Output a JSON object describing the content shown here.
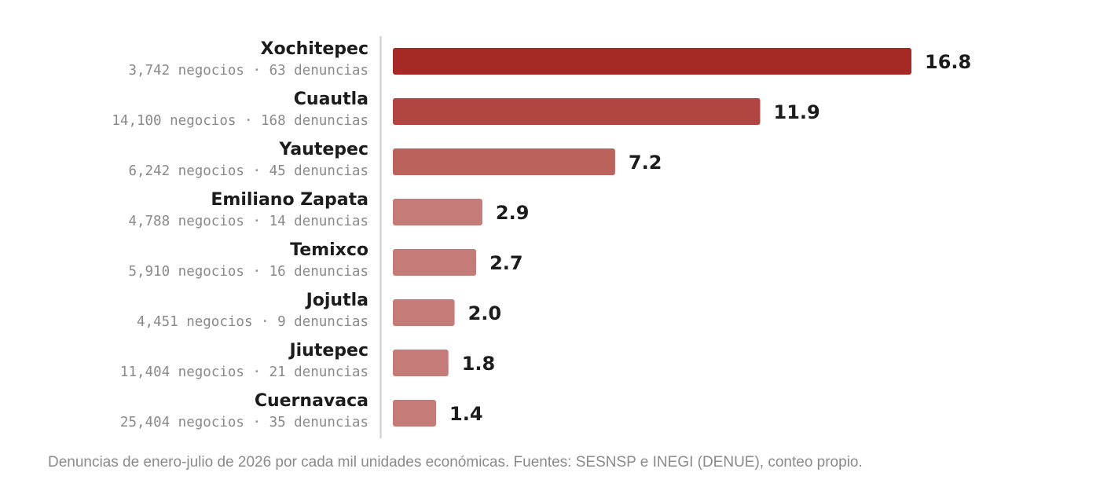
{
  "chart_data": {
    "type": "bar",
    "orientation": "horizontal",
    "categories": [
      "Xochitepec",
      "Cuautla",
      "Yautepec",
      "Emiliano Zapata",
      "Temixco",
      "Jojutla",
      "Jiutepec",
      "Cuernavaca"
    ],
    "subtitles": [
      "3,742 negocios · 63 denuncias",
      "14,100 negocios · 168 denuncias",
      "6,242 negocios · 45 denuncias",
      "4,788 negocios · 14 denuncias",
      "5,910 negocios · 16 denuncias",
      "4,451 negocios · 9 denuncias",
      "11,404 negocios · 21 denuncias",
      "25,404 negocios · 35 denuncias"
    ],
    "values": [
      16.8,
      11.9,
      7.2,
      2.9,
      2.7,
      2.0,
      1.8,
      1.4
    ],
    "value_labels": [
      "16.8",
      "11.9",
      "7.2",
      "2.9",
      "2.7",
      "2.0",
      "1.8",
      "1.4"
    ],
    "xlim": [
      0,
      16.8
    ],
    "colors": [
      "#a52a25",
      "#b04541",
      "#bb625d",
      "#c57b77",
      "#c57b77",
      "#c57b77",
      "#c57b77",
      "#c57b77"
    ],
    "axis_color": "#cccccc",
    "grid": false,
    "legend": "none"
  },
  "caption": "Denuncias de enero-julio de 2026 por cada mil unidades económicas. Fuentes: SESNSP e INEGI (DENUE), conteo propio."
}
